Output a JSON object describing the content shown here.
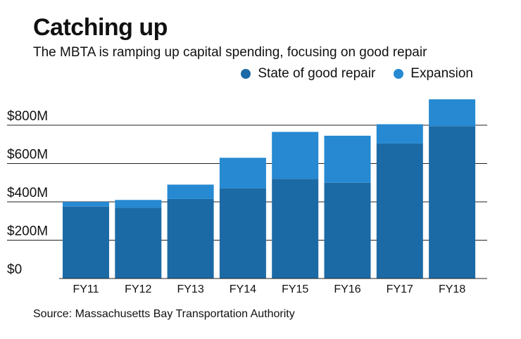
{
  "header": {
    "title": "Catching up",
    "subtitle": "The MBTA is ramping up capital spending, focusing on good repair"
  },
  "legend": {
    "items": [
      {
        "label": "State of good repair",
        "color": "#1c6aa5"
      },
      {
        "label": "Expansion",
        "color": "#2689d1"
      }
    ]
  },
  "source": "Source: Massachusetts Bay Transportation Authority",
  "chart_data": {
    "type": "bar",
    "stacked": true,
    "title": "Catching up",
    "subtitle": "The MBTA is ramping up capital spending, focusing on good repair",
    "xlabel": "",
    "ylabel": "",
    "categories": [
      "FY11",
      "FY12",
      "FY13",
      "FY14",
      "FY15",
      "FY16",
      "FY17",
      "FY18"
    ],
    "series": [
      {
        "name": "State of good repair",
        "color": "#1c6aa5",
        "values": [
          375,
          370,
          415,
          470,
          520,
          500,
          705,
          795
        ]
      },
      {
        "name": "Expansion",
        "color": "#2689d1",
        "values": [
          25,
          40,
          75,
          160,
          245,
          245,
          100,
          140
        ]
      }
    ],
    "ylim": [
      0,
      940
    ],
    "yticks": [
      0,
      200,
      400,
      600,
      800
    ],
    "ytick_labels": [
      "$0",
      "$200M",
      "$400M",
      "$600M",
      "$800M"
    ],
    "grid": true,
    "legend": "top-right"
  }
}
